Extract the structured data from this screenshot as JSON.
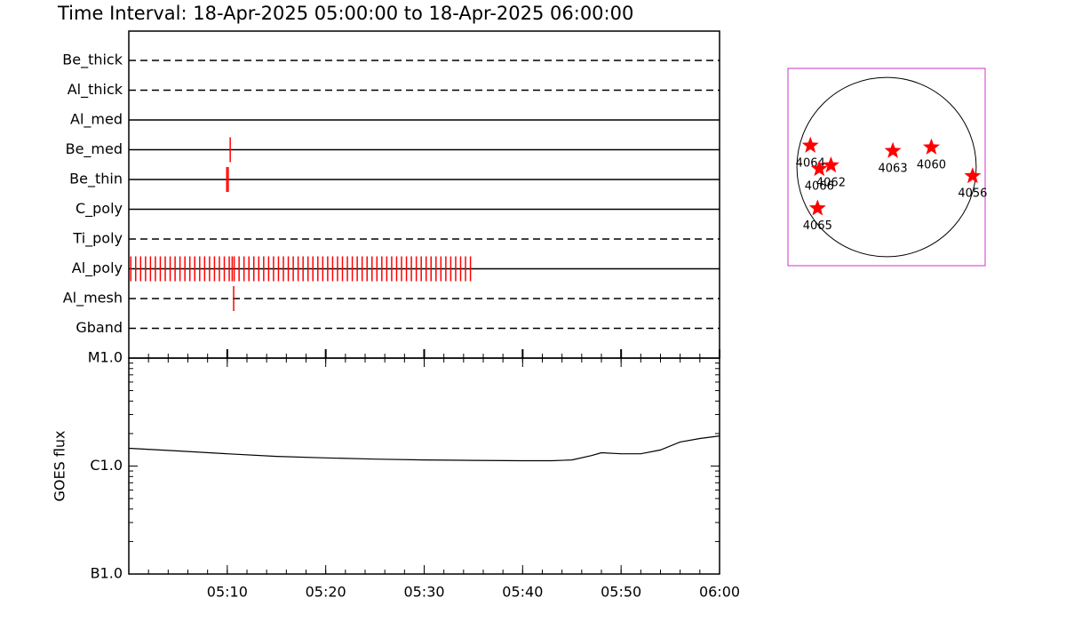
{
  "title": "Time Interval: 18-Apr-2025 05:00:00 to 18-Apr-2025 06:00:00",
  "chart_data": [
    {
      "type": "timeline",
      "xlim": [
        0,
        60
      ],
      "event_color": "#ff0000",
      "series": [
        {
          "name": "Be_thick",
          "style": "dashed",
          "events": []
        },
        {
          "name": "Al_thick",
          "style": "dashed",
          "events": []
        },
        {
          "name": "Al_med",
          "style": "solid",
          "events": []
        },
        {
          "name": "Be_med",
          "style": "solid",
          "events": [
            10.3
          ]
        },
        {
          "name": "Be_thin",
          "style": "solid",
          "events": [
            9.95,
            10.1
          ]
        },
        {
          "name": "C_poly",
          "style": "solid",
          "events": []
        },
        {
          "name": "Ti_poly",
          "style": "dashed",
          "events": []
        },
        {
          "name": "Al_poly",
          "style": "solid",
          "events": [
            0.2,
            0.7,
            1.2,
            1.7,
            2.2,
            2.7,
            3.2,
            3.7,
            4.2,
            4.7,
            5.2,
            5.7,
            6.2,
            6.7,
            7.2,
            7.7,
            8.2,
            8.7,
            9.2,
            9.7,
            10.2,
            10.5,
            10.7,
            11.2,
            11.7,
            12.2,
            12.7,
            13.2,
            13.7,
            14.2,
            14.7,
            15.2,
            15.7,
            16.2,
            16.7,
            17.2,
            17.7,
            18.2,
            18.7,
            19.2,
            19.7,
            20.2,
            20.7,
            21.2,
            21.7,
            22.2,
            22.7,
            23.2,
            23.7,
            24.2,
            24.7,
            25.2,
            25.7,
            26.2,
            26.7,
            27.2,
            27.7,
            28.2,
            28.7,
            29.2,
            29.7,
            30.2,
            30.7,
            31.2,
            31.7,
            32.2,
            32.7,
            33.2,
            33.7,
            34.2,
            34.7
          ]
        },
        {
          "name": "Al_mesh",
          "style": "dashed",
          "events": [
            10.65
          ]
        },
        {
          "name": "Gband",
          "style": "dashed",
          "events": []
        }
      ]
    },
    {
      "type": "line",
      "ylabel": "GOES flux",
      "log_scale": true,
      "color": "#000000",
      "x": [
        0,
        5,
        10,
        15,
        20,
        25,
        30,
        35,
        40,
        43,
        45,
        47,
        48,
        50,
        52,
        54,
        56,
        58,
        60
      ],
      "values": [
        1.46e-06,
        1.38e-06,
        1.3e-06,
        1.23e-06,
        1.19e-06,
        1.16e-06,
        1.14e-06,
        1.13e-06,
        1.12e-06,
        1.12e-06,
        1.14e-06,
        1.25e-06,
        1.33e-06,
        1.3e-06,
        1.3e-06,
        1.41e-06,
        1.67e-06,
        1.8e-06,
        1.9e-06
      ],
      "xlim": [
        0,
        60
      ],
      "xticks": [
        {
          "value": 10,
          "label": "05:10"
        },
        {
          "value": 20,
          "label": "05:20"
        },
        {
          "value": 30,
          "label": "05:30"
        },
        {
          "value": 40,
          "label": "05:40"
        },
        {
          "value": 50,
          "label": "05:50"
        },
        {
          "value": 60,
          "label": "06:00"
        }
      ],
      "ylim": [
        1e-07,
        1e-05
      ],
      "yticks": [
        {
          "value": 1e-07,
          "label": "B1.0"
        },
        {
          "value": 1e-06,
          "label": "C1.0"
        },
        {
          "value": 1e-05,
          "label": "M1.0"
        }
      ]
    },
    {
      "type": "disk",
      "xlim": [
        -1.1,
        1.1
      ],
      "ylim": [
        -1.1,
        1.1
      ],
      "color": "#ff0000",
      "frame_color": "#cc33cc",
      "labels": [
        "4064",
        "4066",
        "4062",
        "4065",
        "4063",
        "4060",
        "4056"
      ],
      "x": [
        -0.85,
        -0.75,
        -0.62,
        -0.77,
        0.07,
        0.5,
        0.96
      ],
      "y": [
        0.24,
        -0.02,
        0.02,
        -0.46,
        0.18,
        0.22,
        -0.1
      ]
    }
  ]
}
